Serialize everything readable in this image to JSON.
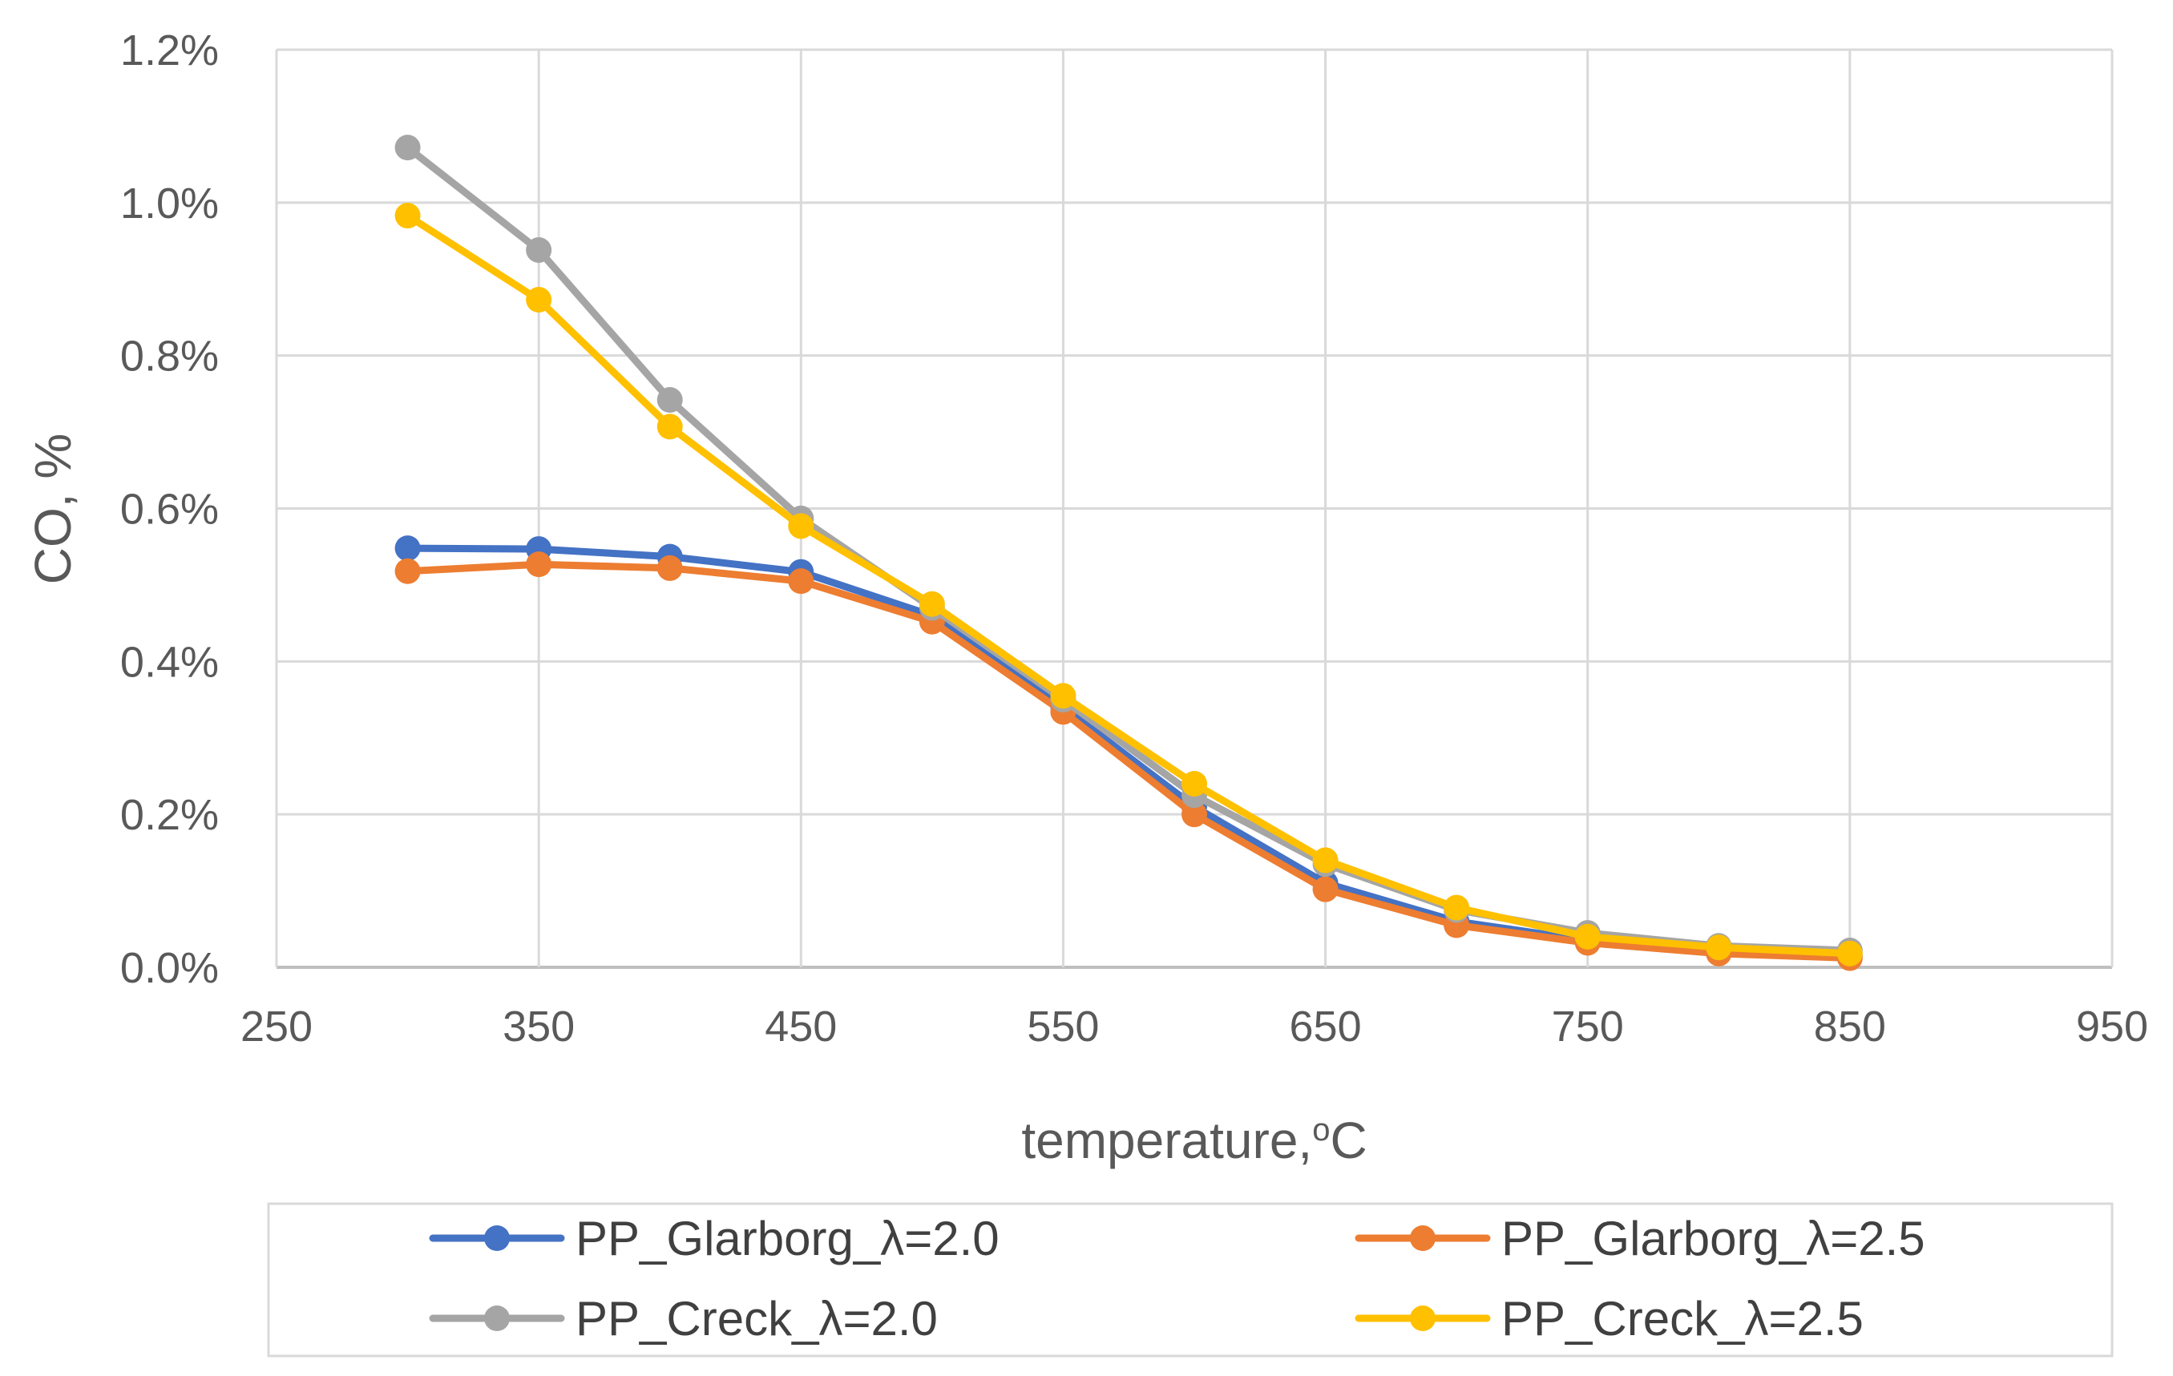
{
  "chart_data": {
    "type": "line",
    "title": "",
    "xlabel": "temperature,",
    "xlabel_sup": "o",
    "xlabel_unit": "C",
    "ylabel": "CO, %",
    "xlim": [
      250,
      950
    ],
    "ylim": [
      0,
      0.012
    ],
    "x_ticks": [
      250,
      350,
      450,
      550,
      650,
      750,
      850,
      950
    ],
    "y_ticks": [
      0,
      0.002,
      0.004,
      0.006,
      0.008,
      0.01,
      0.012
    ],
    "x_tick_labels": [
      "250",
      "350",
      "450",
      "550",
      "650",
      "750",
      "850",
      "950"
    ],
    "y_tick_labels": [
      "0.0%",
      "0.2%",
      "0.4%",
      "0.6%",
      "0.8%",
      "1.0%",
      "1.2%"
    ],
    "grid": true,
    "legend_position": "bottom",
    "x": [
      300,
      350,
      400,
      450,
      500,
      550,
      600,
      650,
      700,
      750,
      800,
      850
    ],
    "series": [
      {
        "name": "PP_Glarborg_λ=2.0",
        "color": "#4472C4",
        "values": [
          0.00548,
          0.00547,
          0.00537,
          0.00517,
          0.0046,
          0.0034,
          0.0021,
          0.0011,
          0.0006,
          0.00035,
          0.0002,
          0.00015
        ]
      },
      {
        "name": "PP_Glarborg_λ=2.5",
        "color": "#ED7D31",
        "values": [
          0.00518,
          0.00527,
          0.00522,
          0.00505,
          0.00452,
          0.00334,
          0.002,
          0.00102,
          0.00055,
          0.00032,
          0.00018,
          0.00012
        ]
      },
      {
        "name": "PP_Creck_λ=2.0",
        "color": "#A5A5A5",
        "values": [
          0.01072,
          0.00938,
          0.00742,
          0.00587,
          0.0047,
          0.0035,
          0.00225,
          0.00135,
          0.00075,
          0.00045,
          0.00028,
          0.00022
        ]
      },
      {
        "name": "PP_Creck_λ=2.5",
        "color": "#FFC000",
        "values": [
          0.00983,
          0.00873,
          0.00707,
          0.00577,
          0.00475,
          0.00355,
          0.0024,
          0.0014,
          0.00078,
          0.0004,
          0.00026,
          0.00018
        ]
      }
    ]
  }
}
